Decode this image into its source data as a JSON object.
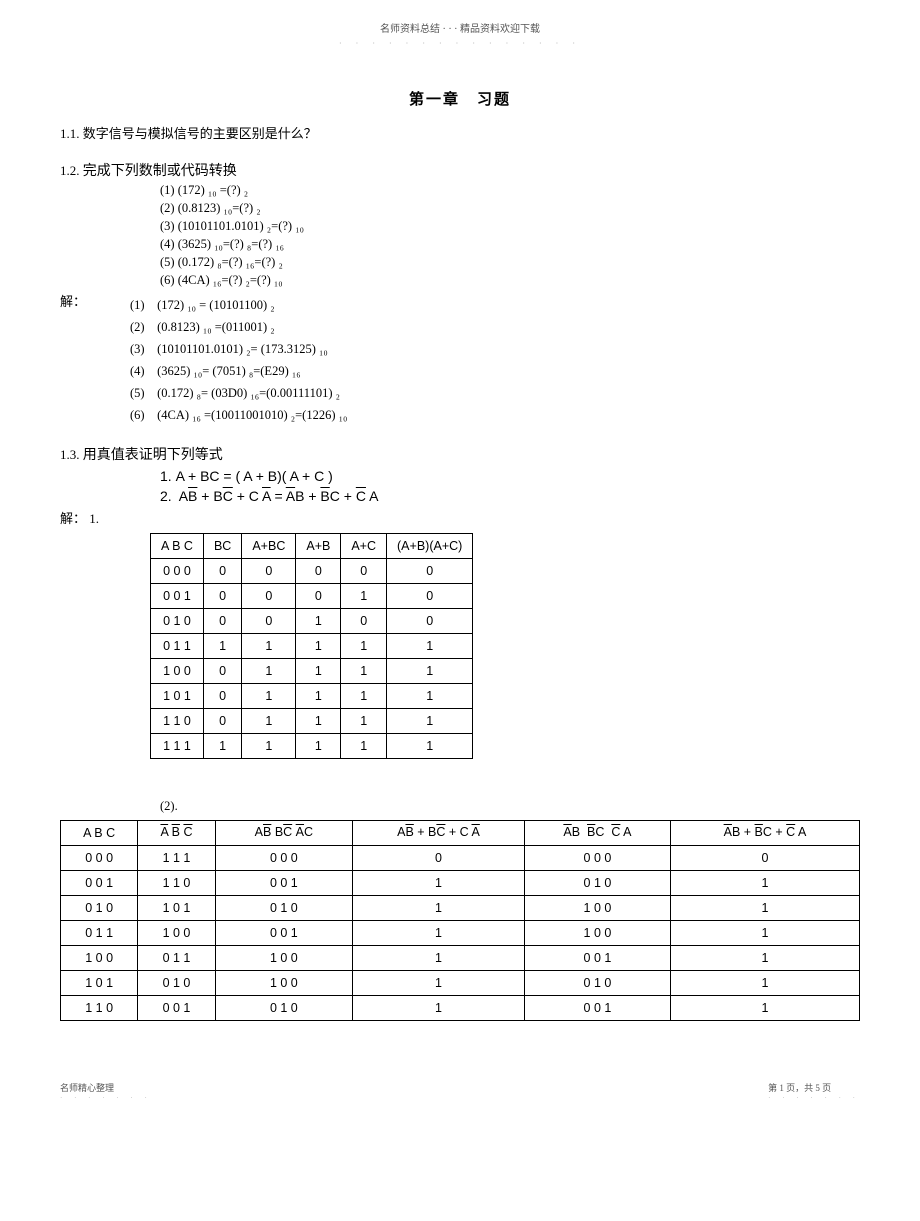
{
  "header": {
    "top": "名师资料总结 · · · 精品资料欢迎下载",
    "dots": "· · · · · · · · · · · · · · ·"
  },
  "chapter_title": "第一章　习题",
  "q11": {
    "num": "1.1.",
    "text": "数字信号与模拟信号的主要区别是什么？"
  },
  "q12": {
    "num": "1.2.",
    "text": "完成下列数制或代码转换",
    "items": [
      "(1) (172) ₁₀  =(?) ₂",
      "(2) (0.8123) ₁₀=(?) ₂",
      "(3) (10101101.0101) ₂=(?) ₁₀",
      "(4) (3625) ₁₀=(?) ₈=(?) ₁₆",
      "(5) (0.172) ₈=(?) ₁₆=(?) ₂",
      "(6) (4CA) ₁₆=(?) ₂=(?) ₁₀"
    ],
    "solve_label": "解：",
    "solutions": [
      "(1)　(172) ₁₀  = (10101100) ₂",
      "(2)　(0.8123) ₁₀ =(011001) ₂",
      "(3)　(10101101.0101) ₂= (173.3125) ₁₀",
      "(4)　(3625) ₁₀= (7051) ₈=(E29) ₁₆",
      "(5)　(0.172) ₈= (03D0) ₁₆=(0.00111101) ₂",
      "(6)　(4CA) ₁₆ =(10011001010) ₂=(1226) ₁₀"
    ]
  },
  "q13": {
    "num": "1.3.",
    "text": "用真值表证明下列等式",
    "eq1_label": "1.",
    "eq1": "A + BC  = ( A + B)( A + C )",
    "eq2_label": "2.",
    "solve_label": "解：",
    "solve1": "1."
  },
  "table1": {
    "headers": [
      "A  B  C",
      "BC",
      "A+BC",
      "A+B",
      "A+C",
      "(A+B)(A+C)"
    ],
    "rows": [
      [
        "0  0  0",
        "0",
        "0",
        "0",
        "0",
        "0"
      ],
      [
        "0  0  1",
        "0",
        "0",
        "0",
        "1",
        "0"
      ],
      [
        "0  1  0",
        "0",
        "0",
        "1",
        "0",
        "0"
      ],
      [
        "0  1  1",
        "1",
        "1",
        "1",
        "1",
        "1"
      ],
      [
        "1  0  0",
        "0",
        "1",
        "1",
        "1",
        "1"
      ],
      [
        "1  0  1",
        "0",
        "1",
        "1",
        "1",
        "1"
      ],
      [
        "1  1  0",
        "0",
        "1",
        "1",
        "1",
        "1"
      ],
      [
        "1  1  1",
        "1",
        "1",
        "1",
        "1",
        "1"
      ]
    ]
  },
  "table2_label": "(2).",
  "table2": {
    "rows": [
      [
        "0 0 0",
        "1 1 1",
        "0  0  0",
        "0",
        "0  0  0",
        "0"
      ],
      [
        "0 0 1",
        "1 1 0",
        "0  0  1",
        "1",
        "0  1  0",
        "1"
      ],
      [
        "0 1 0",
        "1 0 1",
        "0  1  0",
        "1",
        "1  0  0",
        "1"
      ],
      [
        "0 1 1",
        "1 0 0",
        "0  0  1",
        "1",
        "1  0  0",
        "1"
      ],
      [
        "1 0 0",
        "0 1 1",
        "1  0  0",
        "1",
        "0  0  1",
        "1"
      ],
      [
        "1 0 1",
        "0 1 0",
        "1  0  0",
        "1",
        "0  1  0",
        "1"
      ],
      [
        "1 1 0",
        "0 0 1",
        "0  1  0",
        "1",
        "0  0  1",
        "1"
      ]
    ]
  },
  "footer": {
    "left": "名师精心整理",
    "right": "第 1 页，共 5 页",
    "dots": "· · · · · · ·"
  }
}
